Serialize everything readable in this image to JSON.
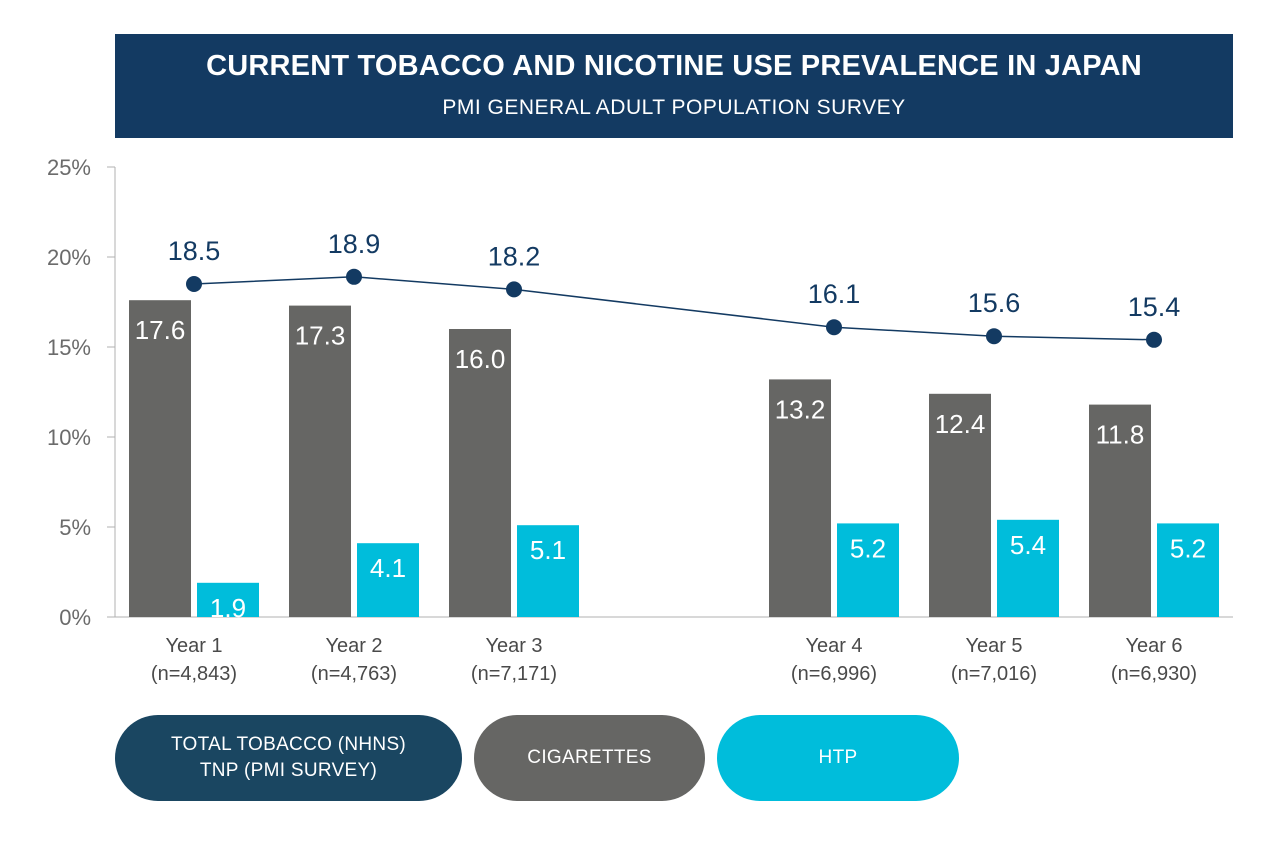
{
  "header": {
    "title": "CURRENT TOBACCO AND NICOTINE USE PREVALENCE IN JAPAN",
    "subtitle": "PMI GENERAL ADULT POPULATION SURVEY"
  },
  "legend": {
    "total_line1": "TOTAL TOBACCO (NHNS)",
    "total_line2": "TNP (PMI SURVEY)",
    "cigarettes": "CIGARETTES",
    "htp": "HTP"
  },
  "chart_data": {
    "type": "bar",
    "title": "CURRENT TOBACCO AND NICOTINE USE PREVALENCE IN JAPAN",
    "subtitle": "PMI GENERAL ADULT POPULATION SURVEY",
    "categories": [
      "Year 1",
      "Year 2",
      "Year 3",
      "Year 4",
      "Year 5",
      "Year 6"
    ],
    "category_sublabels": [
      "(n=4,843)",
      "(n=4,763)",
      "(n=7,171)",
      "(n=6,996)",
      "(n=7,016)",
      "(n=6,930)"
    ],
    "series": [
      {
        "name": "CIGARETTES",
        "type": "bar",
        "color": "#666664",
        "values": [
          17.6,
          17.3,
          16.0,
          13.2,
          12.4,
          11.8
        ]
      },
      {
        "name": "HTP",
        "type": "bar",
        "color": "#00bddb",
        "values": [
          1.9,
          4.1,
          5.1,
          5.2,
          5.4,
          5.2
        ]
      },
      {
        "name": "TOTAL TOBACCO (NHNS) TNP (PMI SURVEY)",
        "type": "line",
        "color": "#133a62",
        "values": [
          18.5,
          18.9,
          18.2,
          16.1,
          15.6,
          15.4
        ]
      }
    ],
    "y_ticks": [
      "0%",
      "5%",
      "10%",
      "15%",
      "20%",
      "25%"
    ],
    "ylim": [
      0,
      25
    ],
    "xlabel": "",
    "ylabel": "",
    "grid": false,
    "legend_position": "bottom-left",
    "colors": {
      "line_label": "#133a62",
      "axis": "#b0b0b0",
      "tick_label": "#6b6b6b",
      "category_label": "#4a4a4a"
    }
  }
}
